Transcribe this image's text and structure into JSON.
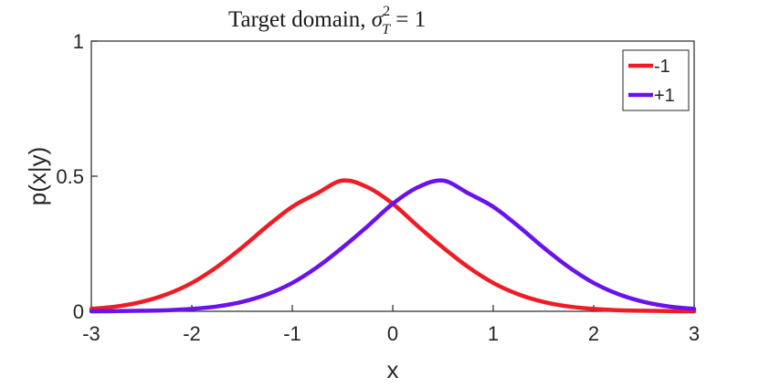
{
  "chart_data": {
    "type": "line",
    "title": "Target domain, ",
    "title_math": {
      "symbol": "σ",
      "superscript": "2",
      "subscript": "T",
      "rhs": " = 1"
    },
    "xlabel": "x",
    "ylabel": "p(x|y)",
    "xlim": [
      -3,
      3
    ],
    "ylim": [
      0,
      1
    ],
    "xticks": [
      -3,
      -2,
      -1,
      0,
      1,
      2,
      3
    ],
    "xtick_labels": [
      "-3",
      "-2",
      "-1",
      "0",
      "1",
      "2",
      "3"
    ],
    "yticks": [
      0,
      0.5,
      1
    ],
    "ytick_labels": [
      "0",
      "0.5",
      "1"
    ],
    "grid": false,
    "legend_position": "top-right",
    "series": [
      {
        "name": "-1",
        "color": "#ee1c24",
        "x": [
          -3,
          -2.75,
          -2.5,
          -2.25,
          -2,
          -1.75,
          -1.5,
          -1.25,
          -1,
          -0.75,
          -0.5,
          -0.25,
          0,
          0.25,
          0.5,
          0.75,
          1,
          1.25,
          1.5,
          1.75,
          2,
          2.25,
          2.5,
          2.75,
          3
        ],
        "values": [
          0.009,
          0.018,
          0.035,
          0.063,
          0.105,
          0.164,
          0.236,
          0.315,
          0.387,
          0.437,
          0.484,
          0.459,
          0.398,
          0.315,
          0.236,
          0.164,
          0.105,
          0.063,
          0.035,
          0.018,
          0.009,
          0.004,
          0.002,
          0.001,
          0.0
        ]
      },
      {
        "name": "+1",
        "color": "#6a12ee",
        "x": [
          -3,
          -2.75,
          -2.5,
          -2.25,
          -2,
          -1.75,
          -1.5,
          -1.25,
          -1,
          -0.75,
          -0.5,
          -0.25,
          0,
          0.25,
          0.5,
          0.75,
          1,
          1.25,
          1.5,
          1.75,
          2,
          2.25,
          2.5,
          2.75,
          3
        ],
        "values": [
          0.0,
          0.001,
          0.002,
          0.004,
          0.009,
          0.018,
          0.035,
          0.063,
          0.105,
          0.164,
          0.236,
          0.315,
          0.398,
          0.459,
          0.484,
          0.437,
          0.387,
          0.315,
          0.236,
          0.164,
          0.105,
          0.063,
          0.035,
          0.018,
          0.009
        ]
      }
    ]
  }
}
